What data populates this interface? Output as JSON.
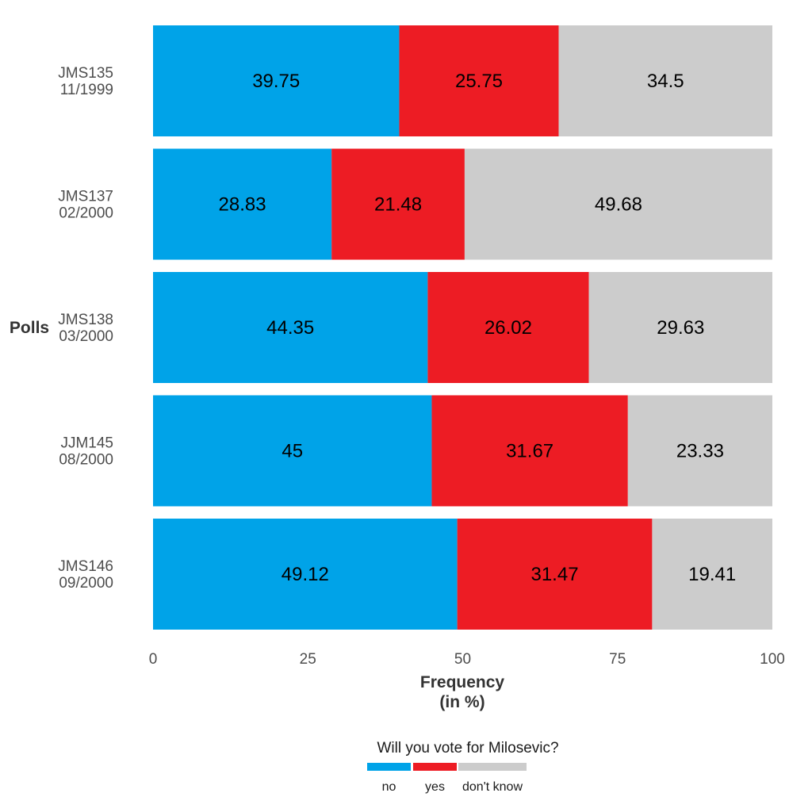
{
  "chart_data": {
    "type": "bar",
    "orientation": "horizontal",
    "stacked": true,
    "categories": [
      [
        "JMS135",
        "11/1999"
      ],
      [
        "JMS137",
        "02/2000"
      ],
      [
        "JMS138",
        "03/2000"
      ],
      [
        "JJM145",
        "08/2000"
      ],
      [
        "JMS146",
        "09/2000"
      ]
    ],
    "series": [
      {
        "name": "no",
        "color": "#00a3e8",
        "values": [
          39.75,
          28.83,
          44.35,
          45,
          49.12
        ],
        "labels": [
          "39.75",
          "28.83",
          "44.35",
          "45",
          "49.12"
        ]
      },
      {
        "name": "yes",
        "color": "#ed1c24",
        "values": [
          25.75,
          21.48,
          26.02,
          31.67,
          31.47
        ],
        "labels": [
          "25.75",
          "21.48",
          "26.02",
          "31.67",
          "31.47"
        ]
      },
      {
        "name": "don't know",
        "color": "#cccccc",
        "values": [
          34.5,
          49.68,
          29.63,
          23.33,
          19.41
        ],
        "labels": [
          "34.5",
          "49.68",
          "29.63",
          "23.33",
          "19.41"
        ]
      }
    ],
    "xlim": [
      0,
      100
    ],
    "xticks": [
      0,
      25,
      50,
      75,
      100
    ],
    "xlabel": [
      "Frequency",
      "(in %)"
    ],
    "ylabel": "Polls",
    "legend_title": "Will you vote for Milosevic?",
    "legend_position": "bottom",
    "grid": false
  }
}
